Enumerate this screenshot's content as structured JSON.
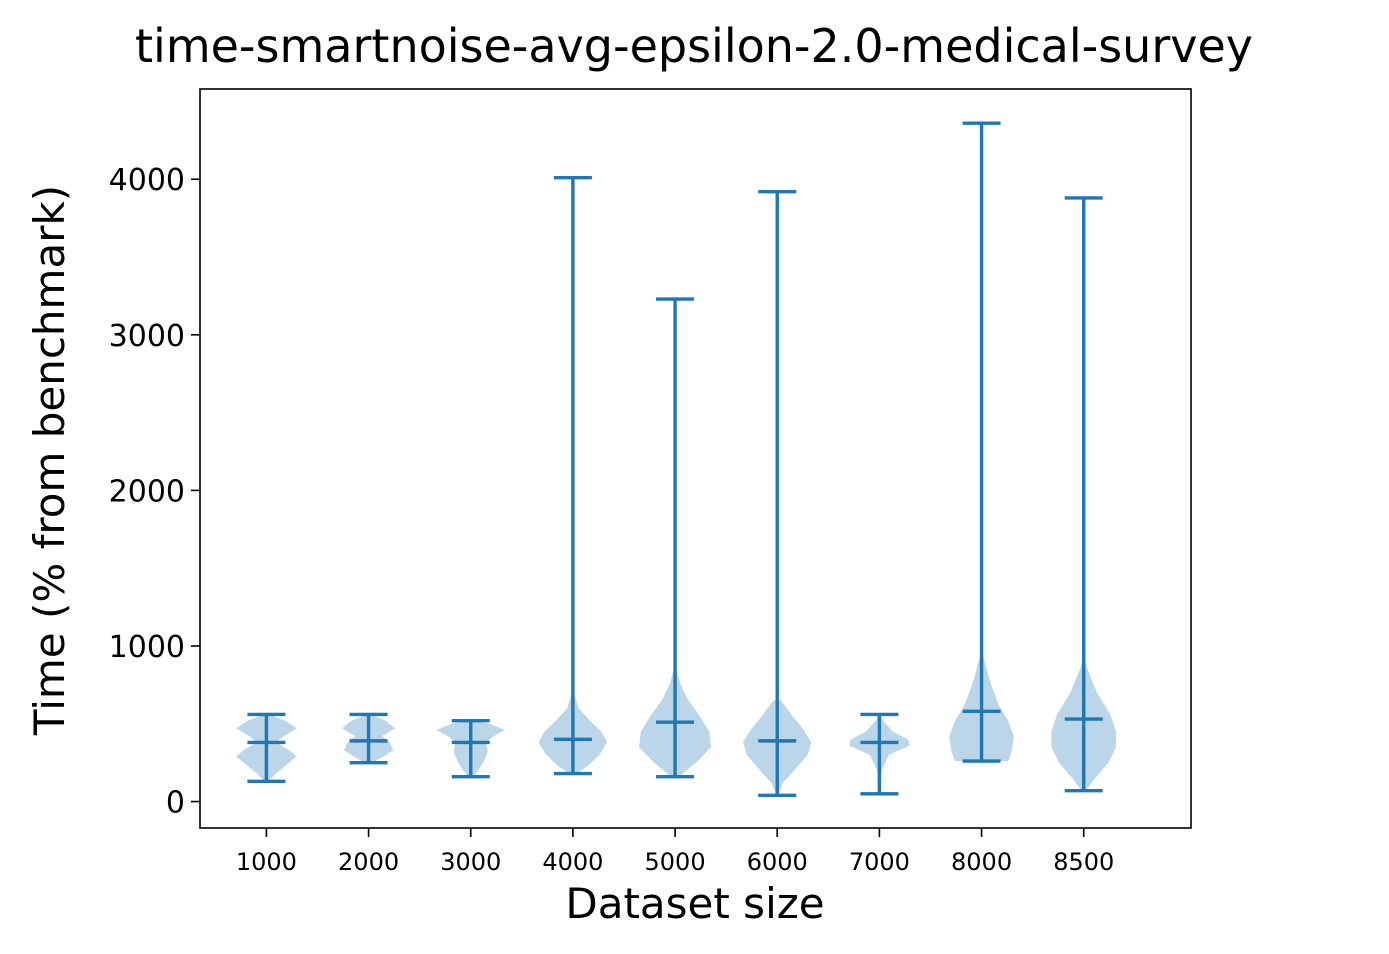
{
  "chart_data": {
    "type": "violin",
    "title": "time-smartnoise-avg-epsilon-2.0-medical-survey",
    "xlabel": "Dataset size",
    "ylabel": "Time (% from benchmark)",
    "categories": [
      "1000",
      "2000",
      "3000",
      "4000",
      "5000",
      "6000",
      "7000",
      "8000",
      "8500"
    ],
    "yticks": [
      0,
      1000,
      2000,
      3000,
      4000
    ],
    "ylim": [
      -170,
      4580
    ],
    "grid": false,
    "show_means": true,
    "colors": {
      "line": "#1f77b4",
      "body": "#1f77b4",
      "body_opacity": 0.3
    },
    "series": [
      {
        "category": "1000",
        "min": 130,
        "max": 560,
        "mean": 380,
        "profile": [
          [
            130,
            0.05
          ],
          [
            180,
            0.25
          ],
          [
            230,
            0.5
          ],
          [
            290,
            0.8
          ],
          [
            330,
            0.6
          ],
          [
            380,
            0.25
          ],
          [
            420,
            0.45
          ],
          [
            470,
            0.8
          ],
          [
            520,
            0.5
          ],
          [
            560,
            0.05
          ]
        ]
      },
      {
        "category": "2000",
        "min": 250,
        "max": 560,
        "mean": 390,
        "profile": [
          [
            250,
            0.1
          ],
          [
            290,
            0.4
          ],
          [
            330,
            0.65
          ],
          [
            380,
            0.55
          ],
          [
            420,
            0.35
          ],
          [
            470,
            0.7
          ],
          [
            520,
            0.45
          ],
          [
            560,
            0.05
          ]
        ]
      },
      {
        "category": "3000",
        "min": 160,
        "max": 520,
        "mean": 380,
        "profile": [
          [
            160,
            0.05
          ],
          [
            200,
            0.2
          ],
          [
            260,
            0.35
          ],
          [
            320,
            0.45
          ],
          [
            380,
            0.4
          ],
          [
            420,
            0.6
          ],
          [
            460,
            0.9
          ],
          [
            500,
            0.5
          ],
          [
            520,
            0.1
          ]
        ]
      },
      {
        "category": "4000",
        "min": 180,
        "max": 4010,
        "mean": 400,
        "profile": [
          [
            180,
            0.1
          ],
          [
            230,
            0.4
          ],
          [
            300,
            0.7
          ],
          [
            380,
            0.9
          ],
          [
            450,
            0.75
          ],
          [
            520,
            0.45
          ],
          [
            600,
            0.15
          ],
          [
            700,
            0.02
          ]
        ]
      },
      {
        "category": "5000",
        "min": 160,
        "max": 3230,
        "mean": 510,
        "profile": [
          [
            160,
            0.1
          ],
          [
            250,
            0.55
          ],
          [
            350,
            0.95
          ],
          [
            450,
            0.9
          ],
          [
            550,
            0.65
          ],
          [
            650,
            0.35
          ],
          [
            750,
            0.15
          ],
          [
            850,
            0.03
          ]
        ]
      },
      {
        "category": "6000",
        "min": 40,
        "max": 3920,
        "mean": 390,
        "profile": [
          [
            40,
            0.02
          ],
          [
            120,
            0.15
          ],
          [
            200,
            0.45
          ],
          [
            300,
            0.8
          ],
          [
            380,
            0.9
          ],
          [
            460,
            0.7
          ],
          [
            550,
            0.4
          ],
          [
            650,
            0.1
          ]
        ]
      },
      {
        "category": "7000",
        "min": 50,
        "max": 560,
        "mean": 380,
        "profile": [
          [
            50,
            0.02
          ],
          [
            200,
            0.06
          ],
          [
            300,
            0.25
          ],
          [
            360,
            0.8
          ],
          [
            400,
            0.75
          ],
          [
            450,
            0.35
          ],
          [
            520,
            0.1
          ],
          [
            560,
            0.02
          ]
        ]
      },
      {
        "category": "8000",
        "min": 260,
        "max": 4360,
        "mean": 580,
        "profile": [
          [
            260,
            0.7
          ],
          [
            330,
            0.8
          ],
          [
            420,
            0.85
          ],
          [
            520,
            0.7
          ],
          [
            620,
            0.45
          ],
          [
            750,
            0.25
          ],
          [
            880,
            0.1
          ],
          [
            950,
            0.02
          ]
        ]
      },
      {
        "category": "8500",
        "min": 70,
        "max": 3880,
        "mean": 530,
        "profile": [
          [
            70,
            0.05
          ],
          [
            150,
            0.3
          ],
          [
            250,
            0.65
          ],
          [
            350,
            0.85
          ],
          [
            450,
            0.85
          ],
          [
            560,
            0.7
          ],
          [
            700,
            0.35
          ],
          [
            850,
            0.1
          ],
          [
            920,
            0.02
          ]
        ]
      }
    ]
  }
}
